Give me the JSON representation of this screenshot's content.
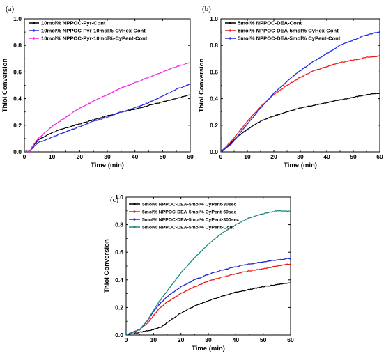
{
  "chart_data": [
    {
      "type": "line",
      "panel_label": "(a)",
      "xlabel": "Time (min)",
      "ylabel": "Thiol Conversion",
      "xlim": [
        0,
        60
      ],
      "ylim": [
        0,
        1.0
      ],
      "xticks": [
        "0",
        "10",
        "20",
        "30",
        "40",
        "50",
        "60"
      ],
      "yticks": [
        "0.0",
        "0.2",
        "0.4",
        "0.6",
        "0.8",
        "1.0"
      ],
      "legend_position": "top-left",
      "series": [
        {
          "name": "10mol% NPPOC-Pyr-Cont",
          "color": "#000000",
          "x": [
            0,
            2,
            3,
            5,
            10,
            15,
            20,
            25,
            30,
            35,
            40,
            45,
            50,
            55,
            60
          ],
          "y": [
            0,
            0.005,
            0.04,
            0.09,
            0.145,
            0.18,
            0.21,
            0.24,
            0.27,
            0.3,
            0.32,
            0.35,
            0.375,
            0.4,
            0.43
          ]
        },
        {
          "name": "10mol% NPPOC-Pyr-10mol%-CyHex-Cont",
          "color": "#2a2ae0",
          "x": [
            0,
            2,
            3,
            5,
            10,
            15,
            20,
            25,
            30,
            35,
            40,
            45,
            50,
            55,
            60
          ],
          "y": [
            0,
            0.005,
            0.03,
            0.07,
            0.11,
            0.15,
            0.19,
            0.23,
            0.26,
            0.3,
            0.33,
            0.37,
            0.42,
            0.47,
            0.51
          ]
        },
        {
          "name": "10mol% NPPOC-Pyr-10mol%-CyPent-Cont",
          "color": "#ee2ee0",
          "x": [
            0,
            2,
            3,
            5,
            10,
            15,
            20,
            25,
            30,
            35,
            40,
            45,
            50,
            55,
            60
          ],
          "y": [
            0,
            0.005,
            0.045,
            0.1,
            0.19,
            0.26,
            0.33,
            0.38,
            0.43,
            0.48,
            0.52,
            0.56,
            0.6,
            0.64,
            0.67
          ]
        }
      ]
    },
    {
      "type": "line",
      "panel_label": "(b)",
      "xlabel": "Time (min)",
      "ylabel": "Thiol Conversion",
      "xlim": [
        0,
        60
      ],
      "ylim": [
        0,
        1.0
      ],
      "xticks": [
        "0",
        "10",
        "20",
        "30",
        "40",
        "50",
        "60"
      ],
      "yticks": [
        "0.0",
        "0.2",
        "0.4",
        "0.6",
        "0.8",
        "1.0"
      ],
      "legend_position": "top-left",
      "series": [
        {
          "name": "5mol% NPPOC-DEA-Cont",
          "color": "#000000",
          "x": [
            0,
            2,
            4,
            6,
            8,
            10,
            15,
            20,
            25,
            30,
            35,
            40,
            45,
            50,
            55,
            60
          ],
          "y": [
            0,
            0.03,
            0.07,
            0.11,
            0.14,
            0.17,
            0.23,
            0.27,
            0.3,
            0.33,
            0.35,
            0.37,
            0.39,
            0.41,
            0.43,
            0.44
          ]
        },
        {
          "name": "5mol% NPPOC-DEA-5mol% CyHex-Cont",
          "color": "#ee1c1c",
          "x": [
            0,
            2,
            4,
            6,
            8,
            10,
            15,
            20,
            25,
            30,
            35,
            40,
            45,
            50,
            55,
            60
          ],
          "y": [
            0,
            0.04,
            0.08,
            0.13,
            0.18,
            0.23,
            0.34,
            0.43,
            0.5,
            0.56,
            0.61,
            0.64,
            0.67,
            0.69,
            0.71,
            0.72
          ]
        },
        {
          "name": "5mol% NPPOC-DEA-5mol% CyPent-Cont",
          "color": "#1c2ee8",
          "x": [
            0,
            2,
            4,
            6,
            8,
            10,
            15,
            20,
            25,
            30,
            35,
            40,
            45,
            50,
            55,
            60
          ],
          "y": [
            0,
            0.03,
            0.06,
            0.11,
            0.16,
            0.21,
            0.33,
            0.44,
            0.53,
            0.61,
            0.68,
            0.74,
            0.8,
            0.84,
            0.88,
            0.9
          ]
        }
      ]
    },
    {
      "type": "line",
      "panel_label": "(c)",
      "xlabel": "Time (min)",
      "ylabel": "Thiol Conversion",
      "xlim": [
        0,
        60
      ],
      "ylim": [
        0,
        1.0
      ],
      "xticks": [
        "0",
        "10",
        "20",
        "30",
        "40",
        "50",
        "60"
      ],
      "yticks": [
        "0.0",
        "0.2",
        "0.4",
        "0.6",
        "0.8",
        "1.0"
      ],
      "legend_position": "top-left",
      "series": [
        {
          "name": "5mol% NPPOC-DEA-5mol% CyPent-30sec",
          "color": "#000000",
          "x": [
            0,
            5,
            10,
            13,
            15,
            20,
            25,
            30,
            35,
            40,
            45,
            50,
            55,
            60
          ],
          "y": [
            0,
            0.02,
            0.04,
            0.06,
            0.09,
            0.16,
            0.21,
            0.25,
            0.28,
            0.31,
            0.33,
            0.35,
            0.365,
            0.38
          ]
        },
        {
          "name": "5mol% NPPOC-DEA-5mol% CyPent-60sec",
          "color": "#e81c1c",
          "x": [
            0,
            5,
            8,
            10,
            12,
            15,
            20,
            25,
            30,
            35,
            40,
            45,
            50,
            55,
            60
          ],
          "y": [
            0,
            0.04,
            0.09,
            0.14,
            0.19,
            0.24,
            0.3,
            0.35,
            0.39,
            0.42,
            0.445,
            0.465,
            0.48,
            0.5,
            0.515
          ]
        },
        {
          "name": "5mol% NPPOC-DEA-5mol% CyPent-300sec",
          "color": "#1c24d8",
          "x": [
            0,
            5,
            8,
            10,
            12,
            15,
            20,
            25,
            30,
            35,
            40,
            45,
            50,
            55,
            60
          ],
          "y": [
            0,
            0.04,
            0.11,
            0.17,
            0.22,
            0.28,
            0.35,
            0.4,
            0.44,
            0.47,
            0.495,
            0.515,
            0.53,
            0.545,
            0.555
          ]
        },
        {
          "name": "5mol% NPPOC-DEA-5mol% CyPent-Cont",
          "color": "#1a8a80",
          "x": [
            0,
            5,
            8,
            10,
            12,
            15,
            20,
            25,
            30,
            35,
            40,
            45,
            50,
            55,
            60
          ],
          "y": [
            0,
            0.04,
            0.11,
            0.18,
            0.24,
            0.32,
            0.45,
            0.56,
            0.66,
            0.74,
            0.8,
            0.85,
            0.88,
            0.9,
            0.9
          ]
        }
      ]
    }
  ]
}
